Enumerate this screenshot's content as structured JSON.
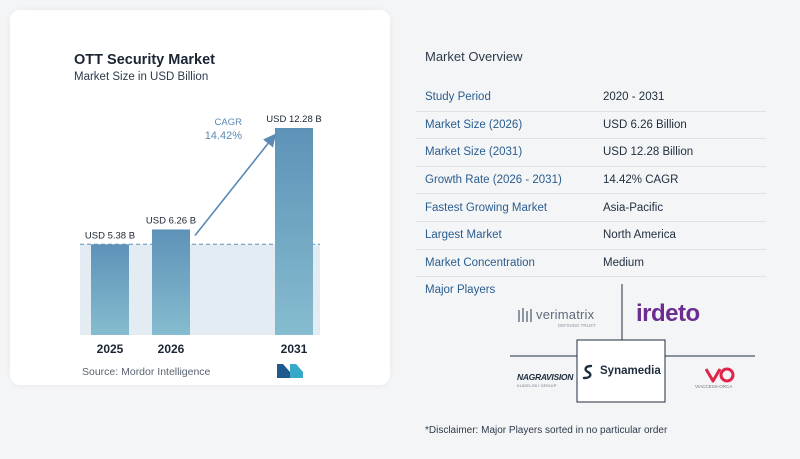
{
  "chart_data": {
    "type": "bar",
    "title": "OTT Security Market",
    "subtitle": "Market Size in USD Billion",
    "categories": [
      "2025",
      "2026",
      "2031"
    ],
    "values": [
      5.38,
      6.26,
      12.28
    ],
    "data_labels": [
      "USD 5.38 B",
      "USD 6.26 B",
      "USD 12.28 B"
    ],
    "ylim": [
      0,
      12.28
    ],
    "cagr_label": "CAGR",
    "cagr_value": "14.42%",
    "grid": false,
    "colors": {
      "bar": "#5e92b8",
      "bar_light": "#86bccf",
      "band": "#e3ecf3",
      "arrow": "#5a8ab5",
      "cagr": "#5a8ab5"
    }
  },
  "source": "Source:  Mordor Intelligence",
  "overview": {
    "title": "Market Overview",
    "rows": [
      {
        "label": "Study Period",
        "value": "2020 - 2031"
      },
      {
        "label": "Market Size (2026)",
        "value": "USD 6.26 Billion"
      },
      {
        "label": "Market Size (2031)",
        "value": "USD 12.28 Billion"
      },
      {
        "label": "Growth Rate (2026 - 2031)",
        "value": "14.42% CAGR"
      },
      {
        "label": "Fastest Growing Market",
        "value": "Asia-Pacific"
      },
      {
        "label": "Largest Market",
        "value": "North America"
      },
      {
        "label": "Market Concentration",
        "value": "Medium"
      }
    ]
  },
  "players": {
    "title": "Major Players",
    "logos": {
      "verimatrix": "verimatrix",
      "verimatrix_tag": "DEFINING TRUST",
      "irdeto": "irdeto",
      "synamedia": "Synamedia",
      "nagravision": "NAGRAVISION",
      "nagra_tag": "KUDELSKI GROUP",
      "viaccess": "VIACCESS-ORCA"
    },
    "colors": {
      "irdeto": "#6b2d8f",
      "viaccess": "#e0254b",
      "brand": "#1f2d3d"
    }
  },
  "disclaimer": "*Disclaimer: Major Players sorted in no particular order"
}
